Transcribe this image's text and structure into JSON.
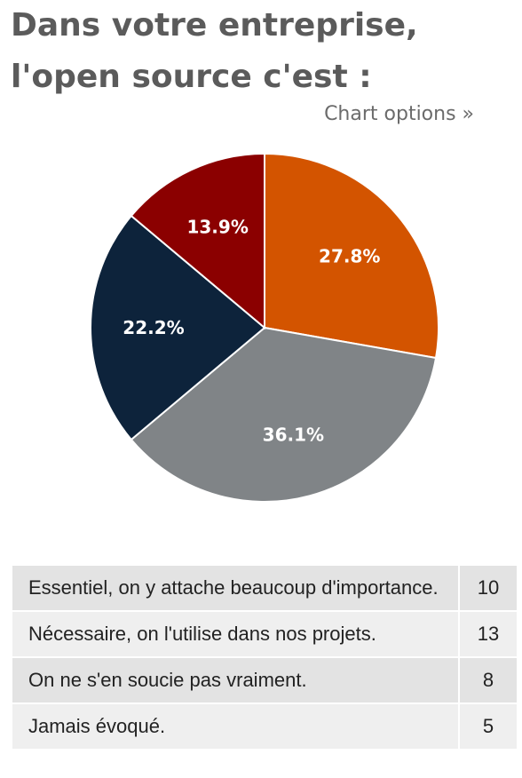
{
  "title": "Dans votre entreprise, l'open source c'est :",
  "chart_options_label": "Chart options »",
  "chart_data": {
    "type": "pie",
    "categories": [
      "Essentiel, on y attache beaucoup d'importance.",
      "Nécessaire, on l'utilise dans nos projets.",
      "On ne s'en soucie pas vraiment.",
      "Jamais évoqué."
    ],
    "values": [
      10,
      13,
      8,
      5
    ],
    "percent_labels": [
      "27.8%",
      "36.1%",
      "22.2%",
      "13.9%"
    ],
    "colors": [
      "#d35400",
      "#808487",
      "#0d233b",
      "#8b0000"
    ],
    "start_angle": "12 o'clock",
    "direction": "clockwise"
  },
  "table": {
    "rows": [
      {
        "label": "Essentiel, on y attache beaucoup d'importance.",
        "count": "10"
      },
      {
        "label": "Nécessaire, on l'utilise dans nos projets.",
        "count": "13"
      },
      {
        "label": "On ne s'en soucie pas vraiment.",
        "count": "8"
      },
      {
        "label": "Jamais évoqué.",
        "count": "5"
      }
    ]
  }
}
